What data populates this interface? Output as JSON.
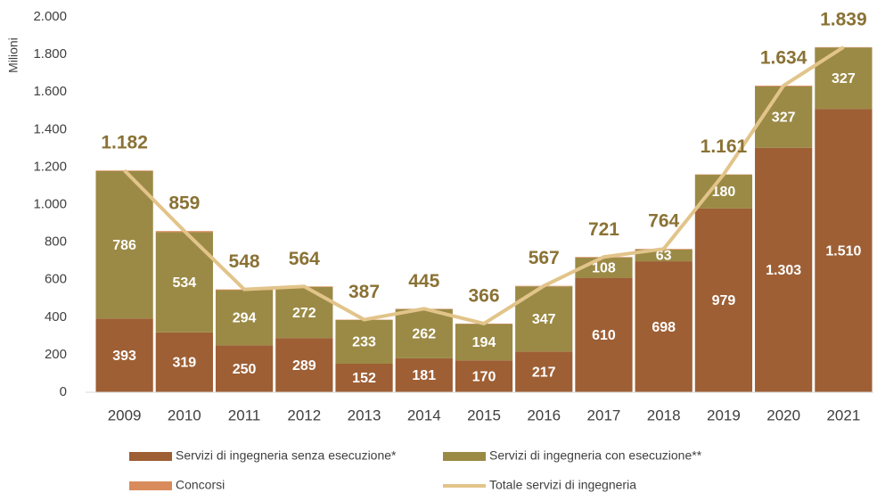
{
  "chart_data": {
    "type": "bar",
    "stacked": true,
    "y_label": "Milioni",
    "categories": [
      "2009",
      "2010",
      "2011",
      "2012",
      "2013",
      "2014",
      "2015",
      "2016",
      "2017",
      "2018",
      "2019",
      "2020",
      "2021"
    ],
    "series": [
      {
        "name": "Servizi di ingegneria senza esecuzione*",
        "color": "#9e5f35",
        "type": "bar",
        "values": [
          393,
          319,
          250,
          289,
          152,
          181,
          170,
          217,
          610,
          698,
          979,
          1303,
          1510
        ],
        "value_labels": [
          "393",
          "319",
          "250",
          "289",
          "152",
          "181",
          "170",
          "217",
          "610",
          "698",
          "979",
          "1.303",
          "1.510"
        ]
      },
      {
        "name": "Servizi di ingegneria con esecuzione**",
        "color": "#9b8a45",
        "type": "bar",
        "values": [
          786,
          534,
          294,
          272,
          233,
          262,
          194,
          347,
          108,
          63,
          180,
          327,
          327
        ],
        "value_labels": [
          "786",
          "534",
          "294",
          "272",
          "233",
          "262",
          "194",
          "347",
          "108",
          "63",
          "180",
          "327",
          "327"
        ]
      },
      {
        "name": "Concorsi",
        "color": "#d98b5b",
        "type": "bar",
        "values": [
          3,
          6,
          4,
          3,
          2,
          2,
          2,
          3,
          3,
          3,
          2,
          4,
          2
        ]
      },
      {
        "name": "Totale servizi di ingegneria",
        "color": "#e2c48a",
        "type": "line",
        "values": [
          1182,
          859,
          548,
          564,
          387,
          445,
          366,
          567,
          721,
          764,
          1161,
          1634,
          1839
        ],
        "value_labels": [
          "1.182",
          "859",
          "548",
          "564",
          "387",
          "445",
          "366",
          "567",
          "721",
          "764",
          "1.161",
          "1.634",
          "1.839"
        ]
      }
    ],
    "ylim": [
      0,
      2000
    ],
    "yticks": [
      0,
      200,
      400,
      600,
      800,
      {
        "value": 1000,
        "label": "1.000"
      },
      {
        "value": 1200,
        "label": "1.200"
      },
      {
        "value": 1400,
        "label": "1.400"
      },
      {
        "value": 1600,
        "label": "1.600"
      },
      {
        "value": 1800,
        "label": "1.800"
      },
      {
        "value": 2000,
        "label": "2.000"
      }
    ],
    "grid": false,
    "legend": "bottom"
  }
}
